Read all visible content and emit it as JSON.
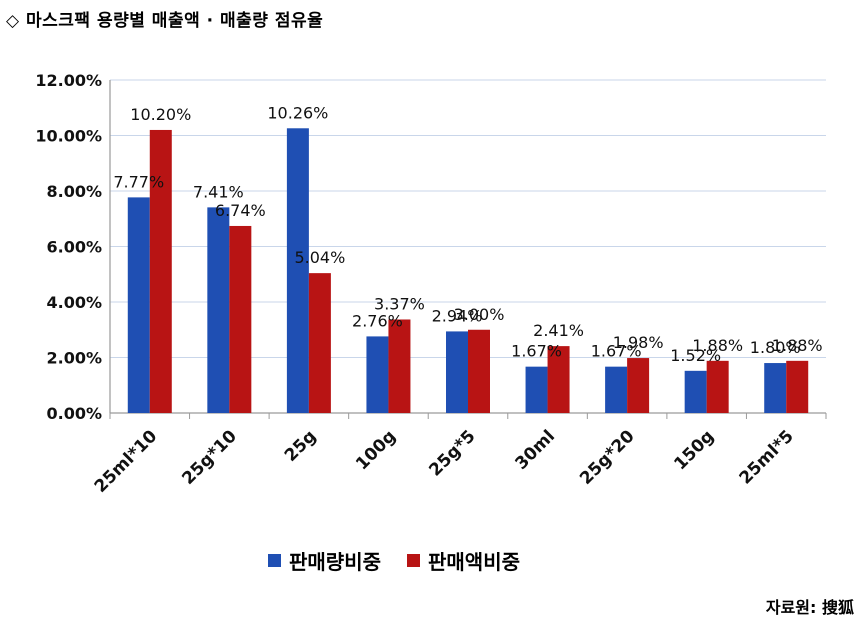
{
  "title": "◇  마스크팩 용량별 매출액 · 매출량 점유율",
  "source": "자료원:  搜狐",
  "chart_data": {
    "type": "bar",
    "categories": [
      "25ml*10",
      "25g*10",
      "25g",
      "100g",
      "25g*5",
      "30ml",
      "25g*20",
      "150g",
      "25ml*5"
    ],
    "series": [
      {
        "name": "판매량비중",
        "color": "#1f4fb3",
        "values": [
          7.77,
          7.41,
          10.26,
          2.76,
          2.94,
          1.67,
          1.67,
          1.52,
          1.8
        ],
        "labels": [
          "7.77%",
          "7.41%",
          "10.26%",
          "2.76%",
          "2.94%",
          "1.67%",
          "1.67%",
          "1.52%",
          "1.80%"
        ]
      },
      {
        "name": "판매액비중",
        "color": "#b81414",
        "values": [
          10.2,
          6.74,
          5.04,
          3.37,
          3.0,
          2.41,
          1.98,
          1.88,
          1.88
        ],
        "labels": [
          "10.20%",
          "6.74%",
          "5.04%",
          "3.37%",
          "3.00%",
          "2.41%",
          "1.98%",
          "1.88%",
          "1.88%"
        ]
      }
    ],
    "ylim": [
      0,
      12
    ],
    "yticks": [
      "0.00%",
      "2.00%",
      "4.00%",
      "6.00%",
      "8.00%",
      "10.00%",
      "12.00%"
    ],
    "grid": true,
    "legend": "bottom"
  }
}
